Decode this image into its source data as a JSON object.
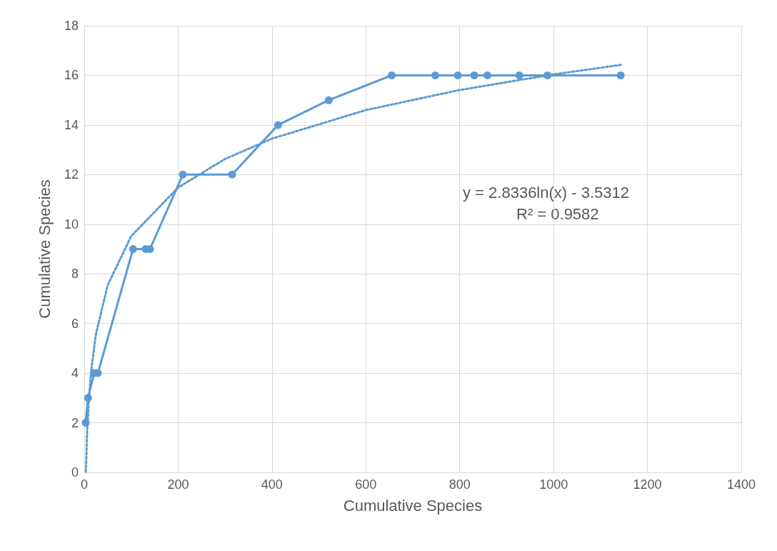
{
  "chart_data": {
    "type": "line",
    "xlabel": "Cumulative Species",
    "ylabel": "Cumulative Species",
    "xlim": [
      0,
      1400
    ],
    "xticks": [
      0,
      200,
      400,
      600,
      800,
      1000,
      1200,
      1400
    ],
    "ylim": [
      0,
      18
    ],
    "yticks": [
      0,
      2,
      4,
      6,
      8,
      10,
      12,
      14,
      16,
      18
    ],
    "grid": true,
    "annotations": [
      "y = 2.8336ln(x) - 3.5312",
      "R² = 0.9582"
    ],
    "series": [
      {
        "color": "#5b9bd5",
        "marker": "circle",
        "line_style": "solid",
        "x": [
          3,
          8,
          21,
          29,
          104,
          131,
          140,
          210,
          315,
          413,
          521,
          655,
          748,
          796,
          831,
          859,
          927,
          987,
          1143
        ],
        "values": [
          2,
          3,
          4,
          4,
          9,
          9,
          9,
          12,
          12,
          14,
          15,
          16,
          16,
          16,
          16,
          16,
          16,
          16,
          16
        ]
      },
      {
        "color": "#5b9bd5",
        "marker": "none",
        "line_style": "dotted",
        "x": [
          3.5,
          6,
          10,
          15,
          25,
          50,
          100,
          200,
          300,
          400,
          600,
          800,
          1000,
          1143
        ],
        "values": [
          0.02,
          1.55,
          2.99,
          4.14,
          5.59,
          7.55,
          9.52,
          11.48,
          12.63,
          13.45,
          14.6,
          15.41,
          16.04,
          16.42
        ]
      }
    ]
  }
}
